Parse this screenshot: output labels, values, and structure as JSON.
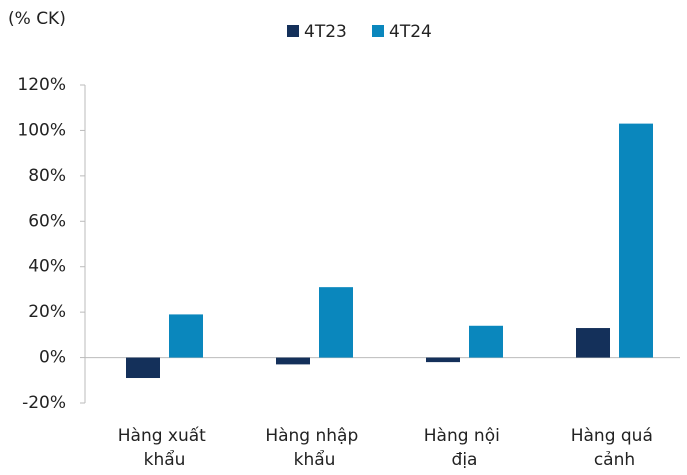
{
  "chart_data": {
    "type": "bar",
    "subtitle": "(% CK)",
    "categories": [
      "Hàng xuất khẩu",
      "Hàng nhập khẩu",
      "Hàng nội địa",
      "Hàng quá cảnh"
    ],
    "series": [
      {
        "name": "4T23",
        "color": "#14305a",
        "values": [
          -9,
          -3,
          -2,
          13
        ]
      },
      {
        "name": "4T24",
        "color": "#0a87bd",
        "values": [
          19,
          31,
          14,
          103
        ]
      }
    ],
    "ylim": [
      -20,
      120
    ],
    "yticks": [
      {
        "value": -20,
        "label": "-20%"
      },
      {
        "value": 0,
        "label": "0%"
      },
      {
        "value": 20,
        "label": "20%"
      },
      {
        "value": 40,
        "label": "40%"
      },
      {
        "value": 60,
        "label": "60%"
      },
      {
        "value": 80,
        "label": "80%"
      },
      {
        "value": 100,
        "label": "100%"
      },
      {
        "value": 120,
        "label": "120%"
      }
    ],
    "legend": "top"
  }
}
